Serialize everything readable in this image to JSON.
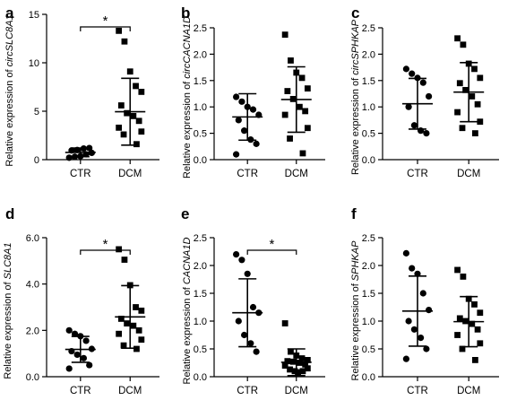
{
  "chart_data": [
    {
      "type": "scatter",
      "panel": "a",
      "ylabel_prefix": "Relative expression of ",
      "ylabel_gene": "circSLC8A1",
      "categories": [
        "CTR",
        "DCM"
      ],
      "yticks": [
        "0",
        "5",
        "10",
        "15"
      ],
      "ylim": [
        0,
        15
      ],
      "significance": "*",
      "series": [
        {
          "name": "CTR",
          "marker": "circle",
          "mean": 0.75,
          "sd": 0.45,
          "values": [
            0.2,
            0.3,
            0.35,
            0.55,
            0.7,
            0.95,
            1.0,
            1.15,
            1.2
          ]
        },
        {
          "name": "DCM",
          "marker": "square",
          "mean": 4.95,
          "sd": 3.45,
          "values": [
            13.3,
            12.2,
            9.1,
            7.6,
            7.0,
            5.6,
            4.8,
            4.5,
            4.0,
            3.3,
            2.9,
            2.6,
            1.6
          ]
        }
      ]
    },
    {
      "type": "scatter",
      "panel": "b",
      "ylabel_prefix": "Relative expression of ",
      "ylabel_gene": "circCACNA1D",
      "categories": [
        "CTR",
        "DCM"
      ],
      "yticks": [
        "0.0",
        "0.5",
        "1.0",
        "1.5",
        "2.0",
        "2.5"
      ],
      "ylim": [
        0,
        2.5
      ],
      "significance": "",
      "series": [
        {
          "name": "CTR",
          "marker": "circle",
          "mean": 0.81,
          "sd": 0.44,
          "values": [
            1.19,
            1.1,
            1.0,
            0.95,
            0.85,
            0.75,
            0.55,
            0.38,
            0.3,
            0.1
          ]
        },
        {
          "name": "DCM",
          "marker": "square",
          "mean": 1.14,
          "sd": 0.62,
          "values": [
            2.37,
            1.88,
            1.65,
            1.55,
            1.35,
            1.3,
            1.15,
            1.0,
            0.92,
            0.85,
            0.6,
            0.4,
            0.12
          ]
        }
      ]
    },
    {
      "type": "scatter",
      "panel": "c",
      "ylabel_prefix": "Relative expression of ",
      "ylabel_gene": "circSPHKAP",
      "categories": [
        "CTR",
        "DCM"
      ],
      "yticks": [
        "0.0",
        "0.5",
        "1.0",
        "1.5",
        "2.0",
        "2.5"
      ],
      "ylim": [
        0,
        2.5
      ],
      "significance": "",
      "series": [
        {
          "name": "CTR",
          "marker": "circle",
          "mean": 1.06,
          "sd": 0.48,
          "values": [
            1.72,
            1.63,
            1.55,
            1.46,
            1.2,
            1.0,
            0.65,
            0.55,
            0.5
          ]
        },
        {
          "name": "DCM",
          "marker": "square",
          "mean": 1.28,
          "sd": 0.56,
          "values": [
            2.3,
            2.18,
            1.82,
            1.72,
            1.55,
            1.45,
            1.32,
            1.2,
            1.05,
            0.9,
            0.72,
            0.6,
            0.5
          ]
        }
      ]
    },
    {
      "type": "scatter",
      "panel": "d",
      "ylabel_prefix": "Relative expression of ",
      "ylabel_gene": "SLC8A1",
      "categories": [
        "CTR",
        "DCM"
      ],
      "yticks": [
        "0.0",
        "2.0",
        "4.0",
        "6.0"
      ],
      "ylim": [
        0,
        6
      ],
      "significance": "*",
      "series": [
        {
          "name": "CTR",
          "marker": "circle",
          "mean": 1.18,
          "sd": 0.56,
          "values": [
            2.0,
            1.85,
            1.75,
            1.55,
            1.2,
            1.1,
            0.95,
            0.8,
            0.5,
            0.35
          ]
        },
        {
          "name": "DCM",
          "marker": "square",
          "mean": 2.58,
          "sd": 1.35,
          "values": [
            5.5,
            5.05,
            3.95,
            3.0,
            2.85,
            2.5,
            2.3,
            2.2,
            2.0,
            1.85,
            1.6,
            1.35,
            1.2
          ]
        }
      ]
    },
    {
      "type": "scatter",
      "panel": "e",
      "ylabel_prefix": "Relative expression of ",
      "ylabel_gene": "CACNA1D",
      "categories": [
        "CTR",
        "DCM"
      ],
      "yticks": [
        "0.0",
        "0.5",
        "1.0",
        "1.5",
        "2.0",
        "2.5"
      ],
      "ylim": [
        0,
        2.5
      ],
      "significance": "*",
      "series": [
        {
          "name": "CTR",
          "marker": "circle",
          "mean": 1.15,
          "sd": 0.61,
          "values": [
            2.2,
            2.1,
            1.85,
            1.25,
            1.15,
            1.0,
            0.75,
            0.6,
            0.45
          ]
        },
        {
          "name": "DCM",
          "marker": "square",
          "mean": 0.26,
          "sd": 0.24,
          "values": [
            0.96,
            0.45,
            0.38,
            0.33,
            0.3,
            0.28,
            0.27,
            0.25,
            0.22,
            0.2,
            0.15,
            0.13,
            0.1,
            0.1,
            0.08
          ]
        }
      ]
    },
    {
      "type": "scatter",
      "panel": "f",
      "ylabel_prefix": "Relative expression of ",
      "ylabel_gene": "SPHKAP",
      "categories": [
        "CTR",
        "DCM"
      ],
      "yticks": [
        "0.0",
        "0.5",
        "1.0",
        "1.5",
        "2.0",
        "2.5"
      ],
      "ylim": [
        0,
        2.5
      ],
      "significance": "",
      "series": [
        {
          "name": "CTR",
          "marker": "circle",
          "mean": 1.18,
          "sd": 0.63,
          "values": [
            2.22,
            1.95,
            1.85,
            1.5,
            1.2,
            1.0,
            0.85,
            0.7,
            0.5,
            0.32
          ]
        },
        {
          "name": "DCM",
          "marker": "square",
          "mean": 0.99,
          "sd": 0.45,
          "values": [
            1.92,
            1.8,
            1.4,
            1.3,
            1.15,
            1.05,
            1.0,
            0.95,
            0.85,
            0.75,
            0.6,
            0.5,
            0.3
          ]
        }
      ]
    }
  ],
  "style": {
    "mark_color": "#000000"
  }
}
